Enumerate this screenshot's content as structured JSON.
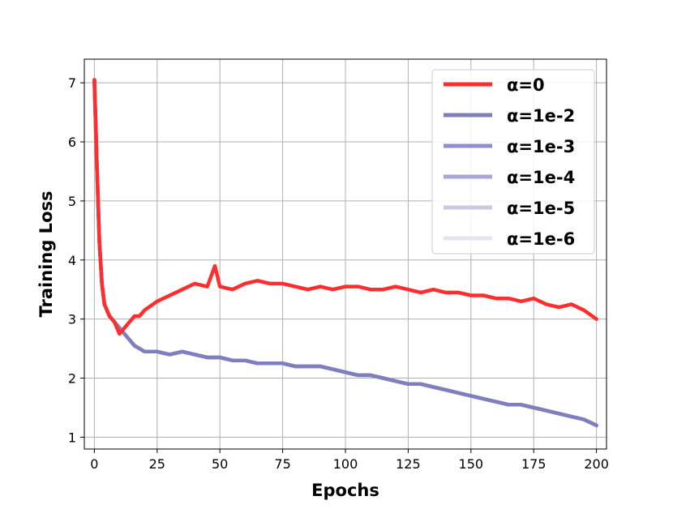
{
  "chart_data": {
    "type": "line",
    "xlabel": "Epochs",
    "ylabel": "Training Loss",
    "xlim": [
      -4,
      204
    ],
    "ylim": [
      0.8,
      7.4
    ],
    "xticks": [
      0,
      25,
      50,
      75,
      100,
      125,
      150,
      175,
      200
    ],
    "xtick_labels": [
      "0",
      "25",
      "50",
      "75",
      "100",
      "125",
      "150",
      "175",
      "200"
    ],
    "yticks": [
      1,
      2,
      3,
      4,
      5,
      6,
      7
    ],
    "ytick_labels": [
      "1",
      "2",
      "3",
      "4",
      "5",
      "6",
      "7"
    ],
    "grid": true,
    "legend_position": "top-right",
    "series": [
      {
        "name": "α=0",
        "color": "#ff2d2d",
        "x": [
          0,
          1,
          2,
          3,
          4,
          5,
          6,
          8,
          10,
          12,
          14,
          16,
          18,
          20,
          25,
          30,
          35,
          40,
          45,
          48,
          50,
          55,
          60,
          65,
          70,
          75,
          80,
          85,
          90,
          95,
          100,
          105,
          110,
          115,
          120,
          125,
          130,
          135,
          140,
          145,
          150,
          155,
          160,
          165,
          170,
          175,
          180,
          185,
          190,
          195,
          200
        ],
        "values": [
          7.05,
          5.6,
          4.3,
          3.6,
          3.25,
          3.15,
          3.05,
          2.95,
          2.75,
          2.85,
          2.95,
          3.05,
          3.05,
          3.15,
          3.3,
          3.4,
          3.5,
          3.6,
          3.55,
          3.9,
          3.55,
          3.5,
          3.6,
          3.65,
          3.6,
          3.6,
          3.55,
          3.5,
          3.55,
          3.5,
          3.55,
          3.55,
          3.5,
          3.5,
          3.55,
          3.5,
          3.45,
          3.5,
          3.45,
          3.45,
          3.4,
          3.4,
          3.35,
          3.35,
          3.3,
          3.35,
          3.25,
          3.2,
          3.25,
          3.15,
          3.0
        ]
      },
      {
        "name": "α=1e-2",
        "color": "#7f7fbf",
        "x": [
          0,
          1,
          2,
          3,
          4,
          5,
          6,
          8,
          10,
          12,
          14,
          16,
          18,
          20,
          25,
          30,
          35,
          40,
          45,
          50,
          55,
          60,
          65,
          70,
          75,
          80,
          85,
          90,
          95,
          100,
          105,
          110,
          115,
          120,
          125,
          130,
          135,
          140,
          145,
          150,
          155,
          160,
          165,
          170,
          175,
          180,
          185,
          190,
          195,
          200
        ],
        "values": [
          7.05,
          5.6,
          4.3,
          3.6,
          3.25,
          3.15,
          3.05,
          2.95,
          2.85,
          2.75,
          2.65,
          2.55,
          2.5,
          2.45,
          2.45,
          2.4,
          2.45,
          2.4,
          2.35,
          2.35,
          2.3,
          2.3,
          2.25,
          2.25,
          2.25,
          2.2,
          2.2,
          2.2,
          2.15,
          2.1,
          2.05,
          2.05,
          2.0,
          1.95,
          1.9,
          1.9,
          1.85,
          1.8,
          1.75,
          1.7,
          1.65,
          1.6,
          1.55,
          1.55,
          1.5,
          1.45,
          1.4,
          1.35,
          1.3,
          1.2
        ]
      },
      {
        "name": "α=1e-3",
        "color": "#8f8fcf",
        "x": [
          0,
          1,
          2,
          3,
          4,
          5,
          6,
          8,
          10,
          12,
          14,
          16,
          18,
          20,
          25,
          30,
          35,
          40,
          45,
          50,
          55,
          60,
          65,
          70,
          75,
          80,
          85,
          90,
          95,
          100,
          105,
          110,
          115,
          120,
          125,
          130,
          135,
          140,
          145,
          150,
          155,
          160,
          165,
          170,
          175,
          180,
          185,
          190,
          195,
          200
        ],
        "values": [
          7.05,
          5.6,
          4.3,
          3.6,
          3.25,
          3.15,
          3.05,
          2.95,
          2.85,
          2.75,
          2.65,
          2.55,
          2.5,
          2.45,
          2.45,
          2.4,
          2.45,
          2.4,
          2.35,
          2.35,
          2.3,
          2.3,
          2.25,
          2.25,
          2.25,
          2.2,
          2.2,
          2.2,
          2.15,
          2.1,
          2.05,
          2.05,
          2.0,
          1.95,
          1.9,
          1.9,
          1.85,
          1.8,
          1.75,
          1.7,
          1.65,
          1.6,
          1.55,
          1.55,
          1.5,
          1.45,
          1.4,
          1.35,
          1.3,
          1.2
        ]
      },
      {
        "name": "α=1e-4",
        "color": "#a7a7d7",
        "x": [
          0,
          1,
          2,
          3,
          4,
          5,
          6,
          8,
          10,
          12,
          14,
          16,
          18,
          20,
          25,
          30,
          35,
          40,
          45,
          50,
          55,
          60,
          65,
          70,
          75,
          80,
          85,
          90,
          95,
          100,
          105,
          110,
          115,
          120,
          125,
          130,
          135,
          140,
          145,
          150,
          155,
          160,
          165,
          170,
          175,
          180,
          185,
          190,
          195,
          200
        ],
        "values": [
          7.05,
          5.6,
          4.3,
          3.6,
          3.25,
          3.15,
          3.05,
          2.95,
          2.85,
          2.75,
          2.65,
          2.55,
          2.5,
          2.45,
          2.45,
          2.4,
          2.45,
          2.4,
          2.35,
          2.35,
          2.3,
          2.3,
          2.25,
          2.25,
          2.25,
          2.2,
          2.2,
          2.2,
          2.15,
          2.1,
          2.05,
          2.05,
          2.0,
          1.95,
          1.9,
          1.9,
          1.85,
          1.8,
          1.75,
          1.7,
          1.65,
          1.6,
          1.55,
          1.55,
          1.5,
          1.45,
          1.4,
          1.35,
          1.3,
          1.2
        ]
      },
      {
        "name": "α=1e-5",
        "color": "#c9c9e6",
        "x": [
          0,
          1,
          2,
          3,
          4,
          5,
          6,
          8,
          10,
          12,
          14,
          16,
          18,
          20,
          25,
          30,
          35,
          40,
          45,
          50,
          55,
          60,
          65,
          70,
          75,
          80,
          85,
          90,
          95,
          100,
          105,
          110,
          115,
          120,
          125,
          130,
          135,
          140,
          145,
          150,
          155,
          160,
          165,
          170,
          175,
          180,
          185,
          190,
          195,
          200
        ],
        "values": [
          7.05,
          5.6,
          4.3,
          3.6,
          3.25,
          3.15,
          3.05,
          2.95,
          2.85,
          2.75,
          2.65,
          2.55,
          2.5,
          2.45,
          2.45,
          2.4,
          2.45,
          2.4,
          2.35,
          2.35,
          2.3,
          2.3,
          2.25,
          2.25,
          2.25,
          2.2,
          2.2,
          2.2,
          2.15,
          2.1,
          2.05,
          2.05,
          2.0,
          1.95,
          1.9,
          1.9,
          1.85,
          1.8,
          1.75,
          1.7,
          1.65,
          1.6,
          1.55,
          1.55,
          1.5,
          1.45,
          1.4,
          1.35,
          1.3,
          1.2
        ]
      },
      {
        "name": "α=1e-6",
        "color": "#e4e4f4",
        "x": [
          0,
          1,
          2,
          3,
          4,
          5,
          6,
          8,
          10,
          12,
          14,
          16,
          18,
          20,
          25,
          30,
          35,
          40,
          45,
          50,
          55,
          60,
          65,
          70,
          75,
          80,
          85,
          90,
          95,
          100,
          105,
          110,
          115,
          120,
          125,
          130,
          135,
          140,
          145,
          150,
          155,
          160,
          165,
          170,
          175,
          180,
          185,
          190,
          195,
          200
        ],
        "values": [
          7.05,
          5.6,
          4.3,
          3.6,
          3.25,
          3.15,
          3.05,
          2.95,
          2.85,
          2.75,
          2.65,
          2.55,
          2.5,
          2.45,
          2.45,
          2.4,
          2.45,
          2.4,
          2.35,
          2.35,
          2.3,
          2.3,
          2.25,
          2.25,
          2.25,
          2.2,
          2.2,
          2.2,
          2.15,
          2.1,
          2.05,
          2.05,
          2.0,
          1.95,
          1.9,
          1.9,
          1.85,
          1.8,
          1.75,
          1.7,
          1.65,
          1.6,
          1.55,
          1.55,
          1.5,
          1.45,
          1.4,
          1.35,
          1.3,
          1.2
        ]
      }
    ]
  }
}
